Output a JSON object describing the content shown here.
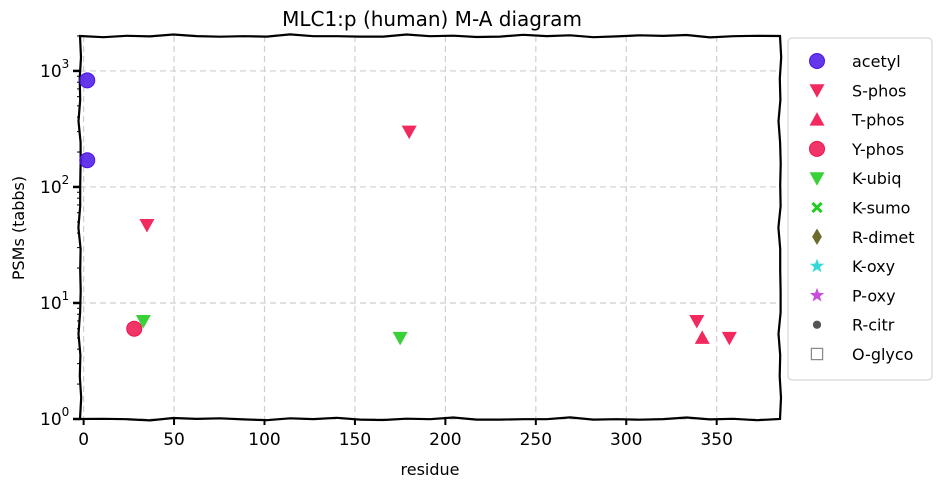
{
  "chart_data": {
    "type": "scatter",
    "title": "MLC1:p (human) M-A diagram",
    "xlabel": "residue",
    "ylabel": "PSMs (tabbs)",
    "xlim": [
      -2,
      385
    ],
    "ylim": [
      1,
      2000
    ],
    "yscale": "log",
    "grid": true,
    "legend_position": "outside-right",
    "x_ticks": [
      "0",
      "50",
      "100",
      "150",
      "200",
      "250",
      "300",
      "350"
    ],
    "x_tick_values": [
      0,
      50,
      100,
      150,
      200,
      250,
      300,
      350
    ],
    "y_ticks": [
      {
        "value": 1,
        "base": "10",
        "exp": "0"
      },
      {
        "value": 10,
        "base": "10",
        "exp": "1"
      },
      {
        "value": 100,
        "base": "10",
        "exp": "2"
      },
      {
        "value": 1000,
        "base": "10",
        "exp": "3"
      }
    ],
    "series": [
      {
        "name": "acetyl",
        "marker": "circle",
        "color": "#4a14e8",
        "points": [
          {
            "x": 2,
            "y": 830
          },
          {
            "x": 2,
            "y": 170
          }
        ]
      },
      {
        "name": "S-phos",
        "marker": "triangle-down",
        "color": "#f0124e",
        "points": [
          {
            "x": 180,
            "y": 300
          },
          {
            "x": 35,
            "y": 47
          },
          {
            "x": 339,
            "y": 7
          },
          {
            "x": 357,
            "y": 5
          }
        ]
      },
      {
        "name": "T-phos",
        "marker": "triangle-up",
        "color": "#f0124e",
        "points": [
          {
            "x": 342,
            "y": 5
          }
        ]
      },
      {
        "name": "Y-phos",
        "marker": "circle",
        "color": "#f0124e",
        "points": [
          {
            "x": 28,
            "y": 6
          }
        ]
      },
      {
        "name": "K-ubiq",
        "marker": "triangle-down",
        "color": "#22cc22",
        "points": [
          {
            "x": 33,
            "y": 7
          },
          {
            "x": 175,
            "y": 5
          }
        ]
      },
      {
        "name": "K-sumo",
        "marker": "x",
        "color": "#22cc22",
        "points": []
      },
      {
        "name": "R-dimet",
        "marker": "diamond",
        "color": "#6b6b2e",
        "points": []
      },
      {
        "name": "K-oxy",
        "marker": "star",
        "color": "#22d4d4",
        "points": []
      },
      {
        "name": "P-oxy",
        "marker": "star",
        "color": "#c43ad6",
        "points": []
      },
      {
        "name": "R-citr",
        "marker": "dot",
        "color": "#555555",
        "points": []
      },
      {
        "name": "O-glyco",
        "marker": "square-open",
        "color": "#888888",
        "points": []
      }
    ]
  }
}
